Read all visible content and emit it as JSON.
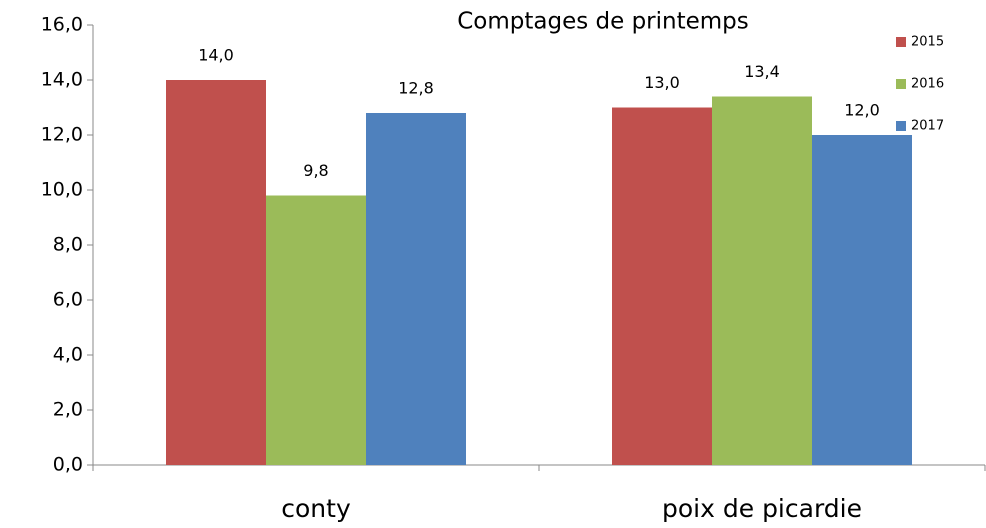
{
  "chart_data": {
    "type": "bar",
    "title": "Comptages de printemps",
    "categories": [
      "conty",
      "poix de picardie"
    ],
    "series": [
      {
        "name": "2015",
        "color": "#c0504d",
        "values": [
          14.0,
          13.0
        ],
        "value_labels": [
          "14,0",
          "13,0"
        ]
      },
      {
        "name": "2016",
        "color": "#9bbb59",
        "values": [
          9.8,
          13.4
        ],
        "value_labels": [
          "9,8",
          "13,4"
        ]
      },
      {
        "name": "2017",
        "color": "#4f81bd",
        "values": [
          12.8,
          12.0
        ],
        "value_labels": [
          "12,8",
          "12,0"
        ]
      }
    ],
    "ylim": [
      0,
      16
    ],
    "yticks": [
      {
        "value": 0,
        "label": "0,0"
      },
      {
        "value": 2,
        "label": "2,0"
      },
      {
        "value": 4,
        "label": "4,0"
      },
      {
        "value": 6,
        "label": "6,0"
      },
      {
        "value": 8,
        "label": "8,0"
      },
      {
        "value": 10,
        "label": "10,0"
      },
      {
        "value": 12,
        "label": "12,0"
      },
      {
        "value": 14,
        "label": "14,0"
      },
      {
        "value": 16,
        "label": "16,0"
      }
    ],
    "grid": false,
    "legend": "top-right"
  }
}
